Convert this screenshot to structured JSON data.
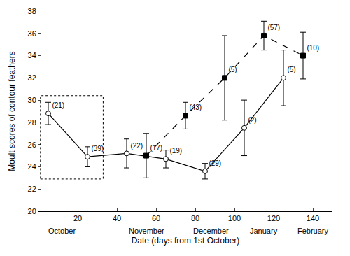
{
  "chart_data": {
    "type": "line",
    "x_label": "Date (days from 1st October)",
    "y_label": "Moult scores of contour feathers",
    "xlim": [
      0,
      150
    ],
    "xticks": [
      20,
      40,
      60,
      80,
      100,
      120,
      140
    ],
    "ylim": [
      20,
      38
    ],
    "yticks": [
      20,
      22,
      24,
      26,
      28,
      30,
      32,
      34,
      36,
      38
    ],
    "grid": false,
    "month_labels": [
      {
        "x": 12,
        "text": "October"
      },
      {
        "x": 55,
        "text": "November"
      },
      {
        "x": 88,
        "text": "December"
      },
      {
        "x": 115,
        "text": "January"
      },
      {
        "x": 140,
        "text": "February"
      }
    ],
    "box": {
      "x0": 1,
      "x1": 33,
      "y0": 22.9,
      "y1": 30.4
    },
    "series": [
      {
        "color": "#000000",
        "marker": "circle-open",
        "line_style": "solid",
        "x": [
          5,
          25,
          45,
          65,
          85,
          105,
          125
        ],
        "values": [
          28.8,
          24.9,
          25.2,
          24.7,
          23.6,
          27.5,
          32.0
        ],
        "errors": [
          1.0,
          0.9,
          1.3,
          0.8,
          0.7,
          2.5,
          2.5
        ],
        "labels": [
          "(21)",
          "(39)",
          "(22)",
          "(19)",
          "(29)",
          "(2)",
          "(5)"
        ]
      },
      {
        "color": "#000000",
        "marker": "square",
        "line_style": "dash",
        "x": [
          55,
          75,
          95,
          115,
          135
        ],
        "values": [
          25.0,
          28.6,
          32.0,
          35.8,
          34.0
        ],
        "errors": [
          2.0,
          1.2,
          3.8,
          1.3,
          2.1
        ],
        "labels": [
          "(17)",
          "(43)",
          "(5)",
          "(57)",
          "(10)"
        ]
      }
    ]
  }
}
